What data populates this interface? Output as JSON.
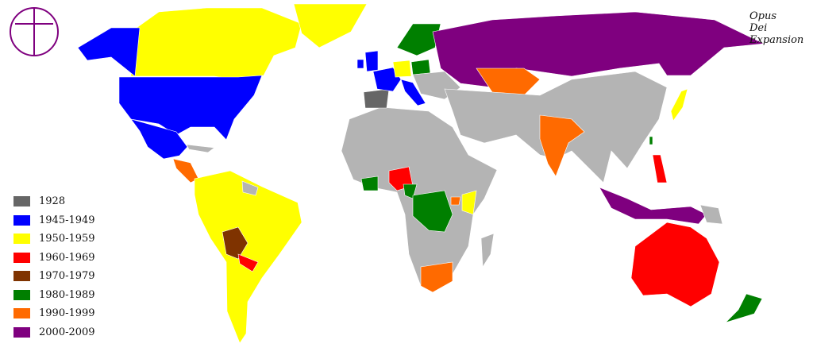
{
  "title": {
    "lines": [
      "Opus",
      "Dei",
      "Expansion"
    ]
  },
  "logo": {
    "icon": "opus-dei-cross-in-circle",
    "color": "#7f007f"
  },
  "legend": [
    {
      "label": "1928",
      "color": "#666666"
    },
    {
      "label": "1945-1949",
      "color": "#0000ff"
    },
    {
      "label": "1950-1959",
      "color": "#ffff00"
    },
    {
      "label": "1960-1969",
      "color": "#ff0000"
    },
    {
      "label": "1970-1979",
      "color": "#7f3300"
    },
    {
      "label": "1980-1989",
      "color": "#007f00"
    },
    {
      "label": "1990-1999",
      "color": "#ff6a00"
    },
    {
      "label": "2000-2009",
      "color": "#7f007f"
    }
  ],
  "no_presence_color": "#b4b4b4"
}
